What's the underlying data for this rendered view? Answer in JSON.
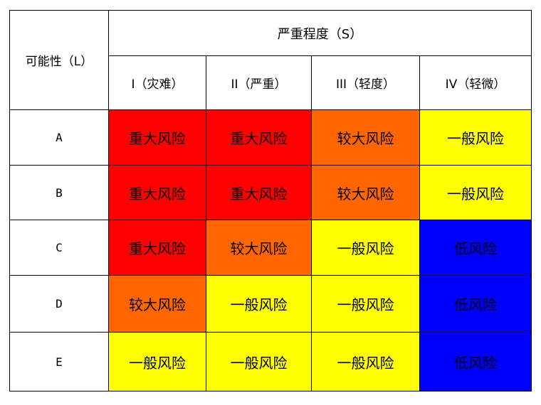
{
  "headers": {
    "likelihood": "可能性（L）",
    "severity": "严重程度（S）",
    "columns": [
      "I（灾难）",
      "II（严重）",
      "III（轻度）",
      "IV（轻微）"
    ]
  },
  "rows": [
    {
      "label": "A",
      "cells": [
        "重大风险",
        "重大风险",
        "较大风险",
        "一般风险"
      ]
    },
    {
      "label": "B",
      "cells": [
        "重大风险",
        "重大风险",
        "较大风险",
        "一般风险"
      ]
    },
    {
      "label": "C",
      "cells": [
        "重大风险",
        "较大风险",
        "一般风险",
        "低风险"
      ]
    },
    {
      "label": "D",
      "cells": [
        "较大风险",
        "一般风险",
        "一般风险",
        "低风险"
      ]
    },
    {
      "label": "E",
      "cells": [
        "一般风险",
        "一般风险",
        "一般风险",
        "低风险"
      ]
    }
  ],
  "level_colors": {
    "重大风险": "#ff0000",
    "较大风险": "#ff6600",
    "一般风险": "#ffff00",
    "低风险": "#0000ff"
  }
}
